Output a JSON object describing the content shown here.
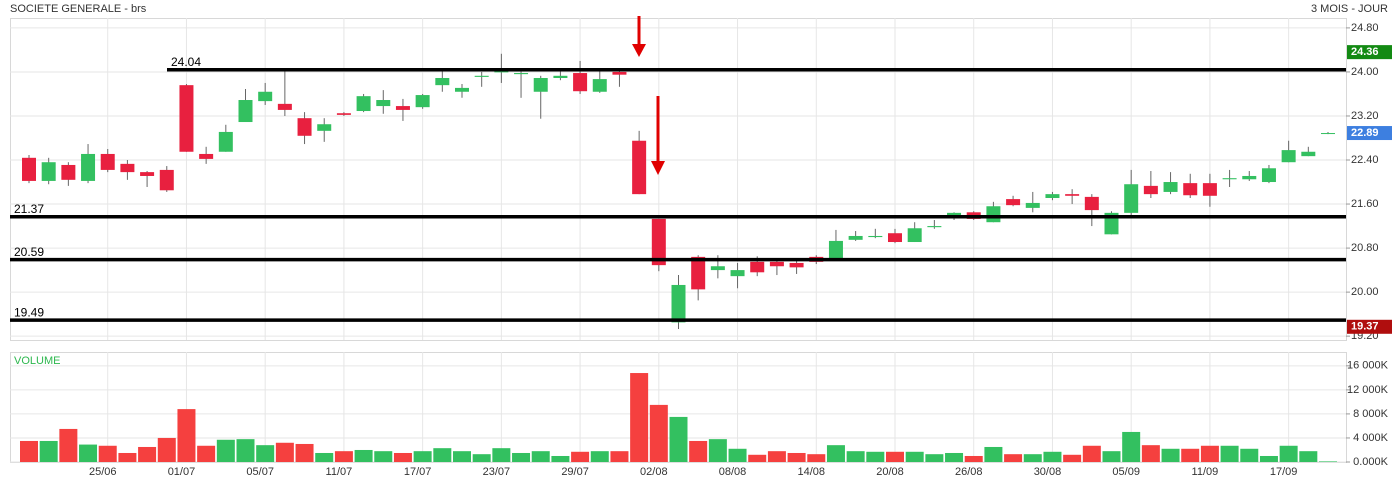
{
  "chart_data": [
    {
      "type": "candlestick",
      "title": "SOCIETE GENERALE - brs",
      "subtitle": "3 MOIS - JOUR",
      "up_color": "#33c060",
      "down_color": "#e8203f",
      "grid": true,
      "categories": [
        null,
        null,
        null,
        null,
        "25/06",
        null,
        null,
        null,
        "01/07",
        null,
        null,
        null,
        "05/07",
        null,
        null,
        null,
        "11/07",
        null,
        null,
        null,
        "17/07",
        null,
        null,
        null,
        "23/07",
        null,
        null,
        null,
        "29/07",
        null,
        null,
        null,
        "02/08",
        null,
        null,
        null,
        "08/08",
        null,
        null,
        null,
        "14/08",
        null,
        null,
        null,
        "20/08",
        null,
        null,
        null,
        "26/08",
        null,
        null,
        null,
        "30/08",
        null,
        null,
        null,
        "05/09",
        null,
        null,
        null,
        "11/09",
        null,
        null,
        null,
        "17/09",
        null,
        null
      ],
      "open": [
        22.44,
        22.02,
        22.31,
        22.02,
        22.51,
        22.33,
        22.18,
        22.22,
        23.76,
        22.51,
        22.55,
        23.09,
        23.47,
        23.42,
        23.16,
        22.93,
        23.25,
        23.29,
        23.38,
        23.38,
        23.36,
        23.76,
        23.64,
        23.91,
        24.0,
        23.96,
        23.64,
        23.89,
        23.98,
        23.64,
        24.0,
        22.75,
        21.33,
        19.45,
        20.64,
        20.4,
        20.29,
        20.55,
        20.55,
        20.53,
        20.64,
        20.58,
        20.95,
        21.0,
        21.07,
        20.91,
        21.18,
        21.35,
        21.45,
        21.27,
        21.69,
        21.53,
        21.71,
        21.78,
        21.73,
        21.05,
        21.44,
        21.93,
        21.82,
        21.98,
        21.98,
        22.05,
        22.05,
        22.0,
        22.36,
        22.47,
        22.89
      ],
      "high": [
        22.49,
        22.44,
        22.36,
        22.69,
        22.6,
        22.4,
        22.2,
        22.29,
        23.78,
        22.64,
        23.04,
        23.69,
        23.8,
        24.07,
        23.27,
        23.16,
        23.27,
        23.6,
        23.67,
        23.51,
        23.6,
        24.05,
        23.78,
        24.0,
        24.33,
        24.07,
        23.93,
        24.02,
        24.2,
        24.04,
        24.02,
        22.93,
        21.33,
        20.31,
        20.67,
        20.67,
        20.53,
        20.65,
        20.62,
        20.6,
        20.67,
        21.13,
        21.11,
        21.15,
        21.15,
        21.27,
        21.31,
        21.45,
        21.47,
        21.64,
        21.75,
        21.82,
        21.82,
        21.87,
        21.78,
        21.47,
        22.22,
        22.2,
        22.18,
        22.15,
        22.15,
        22.22,
        22.2,
        22.31,
        22.75,
        22.64,
        22.91
      ],
      "low": [
        21.98,
        21.96,
        21.93,
        21.98,
        22.18,
        22.04,
        21.91,
        21.82,
        22.55,
        22.33,
        22.55,
        23.09,
        23.4,
        23.2,
        22.69,
        22.73,
        23.2,
        23.27,
        23.24,
        23.11,
        23.33,
        23.64,
        23.53,
        23.73,
        23.8,
        23.53,
        23.15,
        23.85,
        23.6,
        23.62,
        23.73,
        21.78,
        20.38,
        19.33,
        19.85,
        20.25,
        20.07,
        20.29,
        20.31,
        20.33,
        20.51,
        20.58,
        20.93,
        20.98,
        20.89,
        20.91,
        21.15,
        21.31,
        21.31,
        21.27,
        21.56,
        21.45,
        21.67,
        21.6,
        21.2,
        21.05,
        21.4,
        21.71,
        21.78,
        21.71,
        21.55,
        21.91,
        22.02,
        21.98,
        22.36,
        22.47,
        22.87
      ],
      "close": [
        22.02,
        22.36,
        22.04,
        22.51,
        22.22,
        22.18,
        22.11,
        21.85,
        22.55,
        22.42,
        22.91,
        23.49,
        23.64,
        23.31,
        22.84,
        23.05,
        23.22,
        23.56,
        23.49,
        23.31,
        23.58,
        23.89,
        23.71,
        23.93,
        24.01,
        23.98,
        23.89,
        23.93,
        23.65,
        23.87,
        23.95,
        21.78,
        20.49,
        20.13,
        20.05,
        20.47,
        20.4,
        20.36,
        20.47,
        20.45,
        20.55,
        20.93,
        21.02,
        21.02,
        20.91,
        21.16,
        21.2,
        21.44,
        21.33,
        21.56,
        21.58,
        21.62,
        21.78,
        21.75,
        21.49,
        21.44,
        21.96,
        21.78,
        22.0,
        21.76,
        21.75,
        22.07,
        22.11,
        22.25,
        22.58,
        22.55,
        22.89
      ],
      "ylim": [
        19.13,
        24.98
      ],
      "yticks": [
        {
          "value": 24.8,
          "label": "24.80"
        },
        {
          "value": 24.0,
          "label": "24.00"
        },
        {
          "value": 23.2,
          "label": "23.20"
        },
        {
          "value": 22.4,
          "label": "22.40"
        },
        {
          "value": 21.6,
          "label": "21.60"
        },
        {
          "value": 20.8,
          "label": "20.80"
        },
        {
          "value": 20.0,
          "label": "20.00"
        },
        {
          "value": 19.2,
          "label": "19.20"
        }
      ],
      "levels": [
        24.04,
        21.37,
        20.59,
        19.49
      ],
      "markers": [
        {
          "value": 24.36,
          "color": "#138a13"
        },
        {
          "value": 22.89,
          "color": "#3d7fe0"
        },
        {
          "value": 19.37,
          "color": "#b00e0e"
        }
      ]
    },
    {
      "type": "bar",
      "title": "VOLUME",
      "values": [
        3500,
        3500,
        5500,
        2900,
        2700,
        1500,
        2500,
        4000,
        8800,
        2700,
        3700,
        3800,
        2800,
        3200,
        3000,
        1500,
        1800,
        2000,
        1800,
        1500,
        1800,
        2300,
        1800,
        1300,
        2300,
        1500,
        1800,
        1000,
        1700,
        1800,
        1800,
        14800,
        9500,
        7500,
        3500,
        3800,
        2200,
        1200,
        1800,
        1500,
        1300,
        2800,
        1800,
        1700,
        1700,
        1700,
        1300,
        1500,
        1000,
        2500,
        1300,
        1300,
        1700,
        1200,
        2700,
        1800,
        5000,
        2800,
        2200,
        2200,
        2700,
        2700,
        2200,
        1000,
        2700,
        1800,
        100
      ],
      "ylim": [
        0,
        18300
      ],
      "yticks": [
        {
          "value": 0,
          "label": "0.000K"
        },
        {
          "value": 4000,
          "label": "4 000K"
        },
        {
          "value": 8000,
          "label": "8 000K"
        },
        {
          "value": 12000,
          "label": "12 000K"
        },
        {
          "value": 16000,
          "label": "16 000K"
        }
      ]
    }
  ]
}
